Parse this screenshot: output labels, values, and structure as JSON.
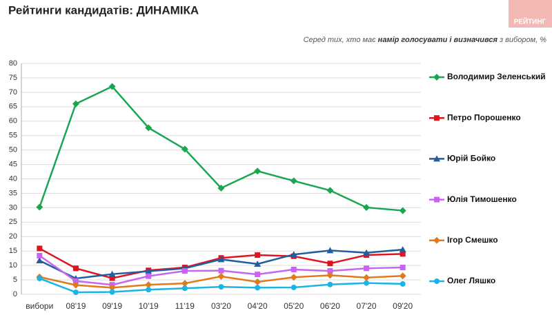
{
  "chart_data": {
    "type": "line",
    "title": "Рейтинги кандидатів: ДИНАМІКА",
    "logo": "РЕЙТИНГ",
    "subtitle": [
      "Серед тих, хто має ",
      "намір голосувати і визначився",
      " з вибором, %"
    ],
    "categories": [
      "вибори",
      "08'19",
      "09'19",
      "10'19",
      "11'19",
      "03'20",
      "04'20",
      "05'20",
      "06'20",
      "07'20",
      "09'20"
    ],
    "ylim": [
      0,
      80
    ],
    "yticks": [
      0,
      5,
      10,
      15,
      20,
      25,
      30,
      35,
      40,
      45,
      50,
      55,
      60,
      65,
      70,
      75,
      80
    ],
    "grid": true,
    "series": [
      {
        "name": "Володимир Зеленський",
        "color": "#1aa651",
        "marker": "diamond",
        "values": [
          30.2,
          66,
          72,
          57.7,
          50.3,
          36.8,
          42.7,
          39.3,
          36,
          30.1,
          29
        ]
      },
      {
        "name": "Петро Порошенко",
        "color": "#e0141e",
        "marker": "square",
        "values": [
          15.9,
          9,
          5.6,
          8.3,
          9.3,
          12.6,
          13.6,
          13.2,
          10.7,
          13.6,
          14
        ]
      },
      {
        "name": "Юрій Бойко",
        "color": "#1f5fa0",
        "marker": "triangle",
        "values": [
          11.7,
          5.5,
          7,
          8,
          9,
          12.1,
          10.5,
          13.8,
          15.2,
          14.4,
          15.5
        ]
      },
      {
        "name": "Юлія Тимошенко",
        "color": "#c864f0",
        "marker": "square",
        "values": [
          13.4,
          4.6,
          3.3,
          6.3,
          8.1,
          8.2,
          6.9,
          8.6,
          8.1,
          9,
          9.3
        ]
      },
      {
        "name": "Ігор Смешко",
        "color": "#e07a1a",
        "marker": "diamond",
        "values": [
          6,
          3.2,
          2.3,
          3.3,
          3.8,
          6.2,
          4.3,
          5.9,
          6.6,
          5.8,
          6.4
        ]
      },
      {
        "name": "Олег Ляшко",
        "color": "#1ab4e6",
        "marker": "circle",
        "values": [
          5.5,
          0.7,
          0.8,
          1.6,
          2.1,
          2.6,
          2.3,
          2.4,
          3.4,
          3.9,
          3.6
        ]
      }
    ]
  }
}
